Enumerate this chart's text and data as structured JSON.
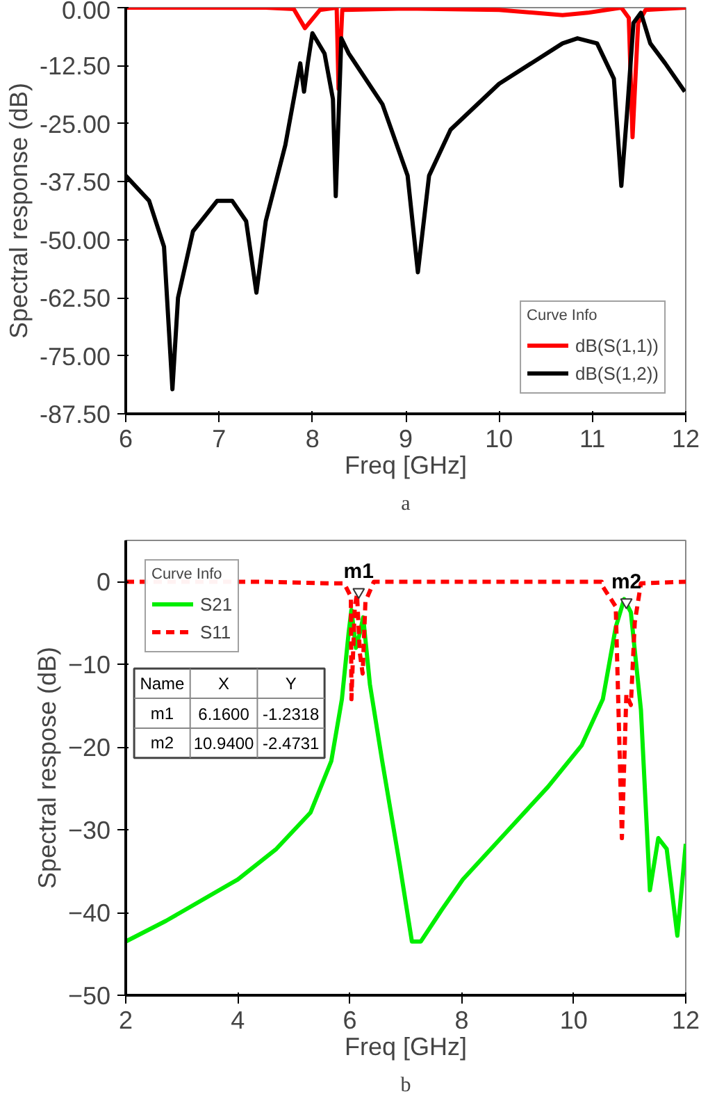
{
  "chart_data": [
    {
      "type": "line",
      "title": "a",
      "xlabel": "Freq [GHz]",
      "ylabel": "Spectral response (dB)",
      "legend_title": "Curve Info",
      "legend": "bottom right",
      "grid": false,
      "xlim": [
        6,
        12
      ],
      "xticks": [
        6,
        7,
        8,
        9,
        10,
        11,
        12
      ],
      "ylim": [
        -87.5,
        0
      ],
      "yticks": [
        {
          "value": 0,
          "label": "0.00"
        },
        {
          "value": -12.5,
          "label": "-12.50"
        },
        {
          "value": -25,
          "label": "-25.00"
        },
        {
          "value": -37.5,
          "label": "-37.50"
        },
        {
          "value": -50,
          "label": "-50.00"
        },
        {
          "value": -62.5,
          "label": "-62.50"
        },
        {
          "value": -75,
          "label": "-75.00"
        },
        {
          "value": -87.5,
          "label": "-87.50"
        }
      ],
      "series": [
        {
          "name": "dB(S(1,1))",
          "color": "#ff0000",
          "line_style": "solid",
          "x": [
            6.0,
            7.5,
            7.8,
            7.92,
            8.08,
            8.26,
            8.28,
            8.32,
            9.0,
            10.0,
            10.68,
            10.95,
            11.31,
            11.39,
            11.43,
            11.49,
            11.57,
            12.0
          ],
          "values": [
            0,
            0,
            -0.3,
            -4.4,
            -0.5,
            0,
            -17.5,
            -0.5,
            -0.2,
            -0.5,
            -1.6,
            -1.1,
            0,
            -2.2,
            -27.9,
            -3.3,
            -0.5,
            0
          ]
        },
        {
          "name": "dB(S(1,2))",
          "color": "#000000",
          "line_style": "solid",
          "x": [
            6.0,
            6.25,
            6.41,
            6.5,
            6.56,
            6.72,
            6.98,
            7.14,
            7.29,
            7.4,
            7.5,
            7.71,
            7.87,
            7.91,
            7.95,
            8.0,
            8.13,
            8.22,
            8.25,
            8.31,
            8.39,
            8.75,
            9.02,
            9.13,
            9.25,
            9.48,
            10.0,
            10.68,
            10.84,
            11.05,
            11.23,
            11.31,
            11.37,
            11.44,
            11.52,
            11.62,
            11.78,
            11.99
          ],
          "values": [
            -36.2,
            -41.6,
            -51.5,
            -82.2,
            -62.5,
            -48.2,
            -41.6,
            -41.6,
            -46,
            -61.4,
            -46,
            -29.6,
            -12,
            -18.1,
            -12,
            -5.5,
            -9.9,
            -19.7,
            -40.6,
            -6.6,
            -9.9,
            -20.8,
            -36.2,
            -57,
            -36.2,
            -26.3,
            -16.4,
            -7.7,
            -6.6,
            -7.7,
            -15.3,
            -38.4,
            -23,
            -3.3,
            -1.1,
            -7.7,
            -12,
            -18.1
          ]
        }
      ]
    },
    {
      "type": "line",
      "title": "b",
      "xlabel": "Freq [GHz]",
      "ylabel": "Spectral respose (dB)",
      "legend_title": "Curve Info",
      "legend": "top left",
      "grid": false,
      "xlim": [
        2,
        12
      ],
      "xticks": [
        2,
        4,
        6,
        8,
        10,
        12
      ],
      "ylim": [
        -50,
        5
      ],
      "yticks": [
        0,
        -10,
        -20,
        -30,
        -40,
        -50
      ],
      "series": [
        {
          "name": "S21",
          "color": "#00ee00",
          "line_style": "solid",
          "x": [
            2.0,
            2.72,
            4.0,
            4.69,
            5.3,
            5.67,
            5.86,
            5.98,
            6.03,
            6.11,
            6.18,
            6.24,
            6.36,
            6.58,
            6.89,
            7.11,
            7.27,
            7.64,
            8.02,
            8.78,
            9.54,
            10.14,
            10.52,
            10.75,
            10.9,
            11.02,
            11.2,
            11.36,
            11.51,
            11.66,
            11.85,
            12.0
          ],
          "values": [
            -43.5,
            -41,
            -36,
            -32.3,
            -27.9,
            -21.7,
            -14.2,
            -6.2,
            -3.4,
            -8,
            -6.2,
            -4.3,
            -12.4,
            -21.7,
            -34.1,
            -43.5,
            -43.5,
            -39.7,
            -36,
            -30.4,
            -24.8,
            -19.8,
            -14.2,
            -5.5,
            -2.1,
            -3.7,
            -15.5,
            -37.3,
            -31,
            -32.3,
            -42.8,
            -31.7
          ]
        },
        {
          "name": "S11",
          "color": "#ff0000",
          "line_style": "dashed",
          "x": [
            2.0,
            4.5,
            5.7,
            5.9,
            6.02,
            6.03,
            6.09,
            6.13,
            6.18,
            6.23,
            6.28,
            6.43,
            10.5,
            10.52,
            10.75,
            10.86,
            10.94,
            11.02,
            11.09,
            11.2,
            12.0
          ],
          "values": [
            0,
            0,
            -0.2,
            -0.2,
            -1.8,
            -14.2,
            -3,
            -1.5,
            -8.6,
            -11.1,
            -2.4,
            0,
            0,
            -0.6,
            -3,
            -31,
            -13.6,
            -14.9,
            -4.9,
            -0.2,
            0
          ]
        }
      ],
      "annotations": [
        "Name",
        "X",
        "Y",
        "m1",
        "6.1600",
        "-1.2318",
        "m2",
        "10.9400",
        "-2.4731",
        {
          "text": "m1",
          "x": 6.16,
          "y": -1.2318
        },
        {
          "text": "m2",
          "x": 10.94,
          "y": -2.4731
        }
      ]
    }
  ]
}
